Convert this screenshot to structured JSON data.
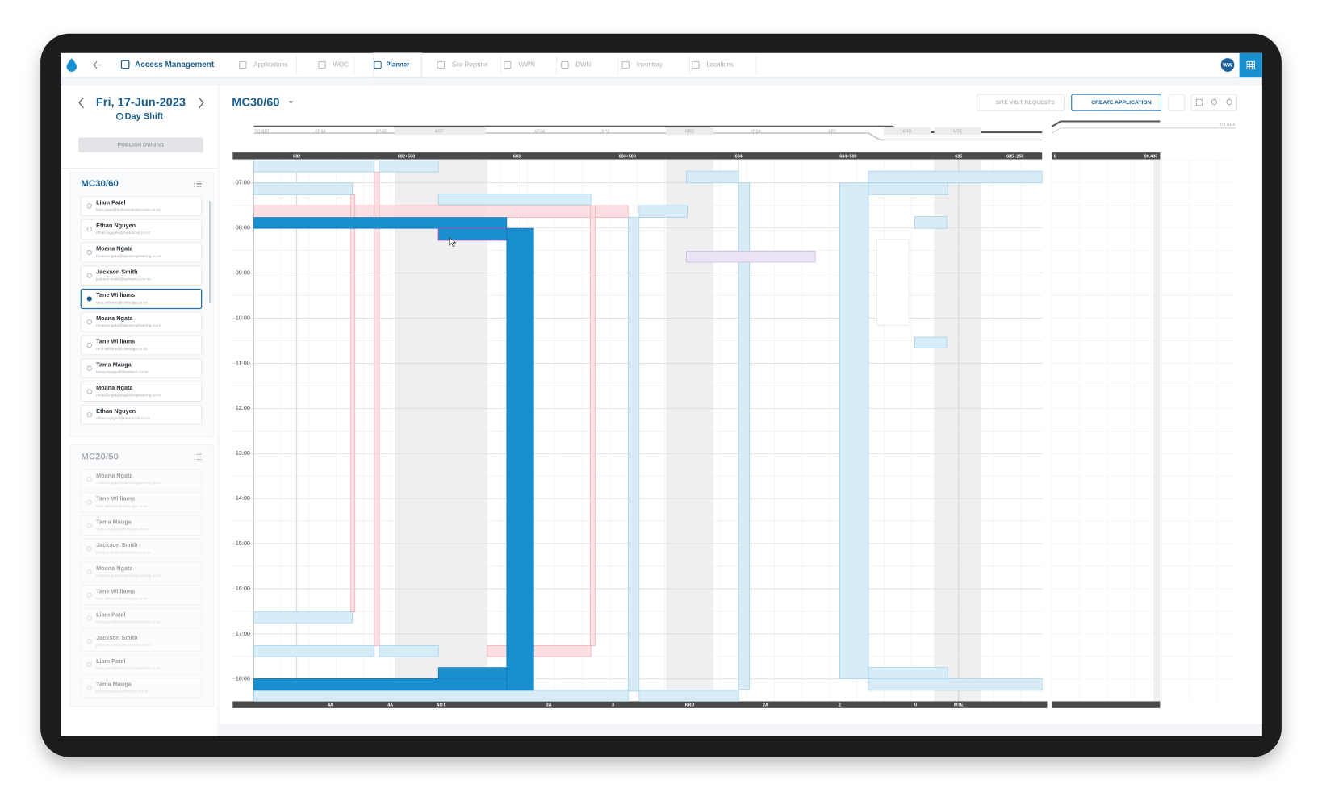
{
  "nav": {
    "app": "Access Management",
    "tabs": [
      "Applications",
      "WOC",
      "Planner",
      "Site Register",
      "WWN",
      "DWN",
      "Inventory",
      "Locations"
    ],
    "active": "Planner",
    "avatar": "WW"
  },
  "sidebar": {
    "date": "Fri, 17-Jun-2023",
    "shift": "Day Shift",
    "publish": "PUBLISH DWN V1",
    "groups": [
      {
        "title": "MC30/60",
        "selected": 4,
        "people": [
          {
            "name": "Liam Patel",
            "email": "liam.patel@horizonconstruction.co.nz"
          },
          {
            "name": "Ethan Nguyen",
            "email": "ethan.nguyen@metrocivil.co.nz"
          },
          {
            "name": "Moana Ngata",
            "email": "moana.ngata@apexengineering.co.nz"
          },
          {
            "name": "Jackson Smith",
            "email": "jackson.smith@techstruct.co.nz"
          },
          {
            "name": "Tane Williams",
            "email": "tane.williams@civiledge.co.nz"
          },
          {
            "name": "Moana Ngata",
            "email": "moana.ngata@apexengineering.co.nz"
          },
          {
            "name": "Tane Williams",
            "email": "tane.williams@civiledge.co.nz"
          },
          {
            "name": "Tama Mauga",
            "email": "tama.mauga@illumitech.co.nz"
          },
          {
            "name": "Moana Ngata",
            "email": "moana.ngata@apexengineering.co.nz"
          },
          {
            "name": "Ethan Nguyen",
            "email": "ethan.nguyen@metrocivil.co.nz"
          }
        ]
      },
      {
        "title": "MC20/50",
        "selected": null,
        "people": [
          {
            "name": "Moana Ngata",
            "email": "moana.ngata@apexengineering.co.nz"
          },
          {
            "name": "Tane Williams",
            "email": "tane.williams@civiledge.co.nz"
          },
          {
            "name": "Tama Mauga",
            "email": "tama.mauga@illumitech.co.nz"
          },
          {
            "name": "Jackson Smith",
            "email": "jackson.smith@techstruct.co.nz"
          },
          {
            "name": "Moana Ngata",
            "email": "moana.ngata@apexengineering.co.nz"
          },
          {
            "name": "Tane Williams",
            "email": "tane.williams@civiledge.co.nz"
          },
          {
            "name": "Liam Patel",
            "email": "liam.patel@horizonconstruction.co.nz"
          },
          {
            "name": "Jackson Smith",
            "email": "jackson.smith@techstruct.co.nz"
          },
          {
            "name": "Liam Patel",
            "email": "liam.patel@horizonconstruction.co.nz"
          },
          {
            "name": "Tama Mauga",
            "email": "tama.mauga@illumitech.co.nz"
          }
        ]
      }
    ]
  },
  "planner": {
    "title": "MC30/60",
    "buttons": [
      "SITE VISIT REQUESTS",
      "CREATE APPLICATION"
    ],
    "track_labels": [
      "TO BRT",
      "XP4A",
      "XP4B",
      "AOT",
      "XP3A",
      "XP3",
      "KRD",
      "XP2A",
      "XP2",
      "KRD",
      "MTE",
      "TO GRF"
    ],
    "chainages": [
      "682",
      "682+500",
      "683",
      "683+500",
      "684",
      "684+500",
      "685",
      "685+250"
    ],
    "chainages_2": [
      "0",
      "00.493"
    ],
    "times": [
      "07:00",
      "08:00",
      "09:00",
      "10:00",
      "11:00",
      "12:00",
      "13:00",
      "14:00",
      "15:00",
      "16:00",
      "17:00",
      "18:00"
    ],
    "locations": [
      "4A",
      "4A",
      "AOT",
      "3A",
      "3",
      "KRD",
      "2A",
      "2",
      "0",
      "MTE"
    ]
  }
}
